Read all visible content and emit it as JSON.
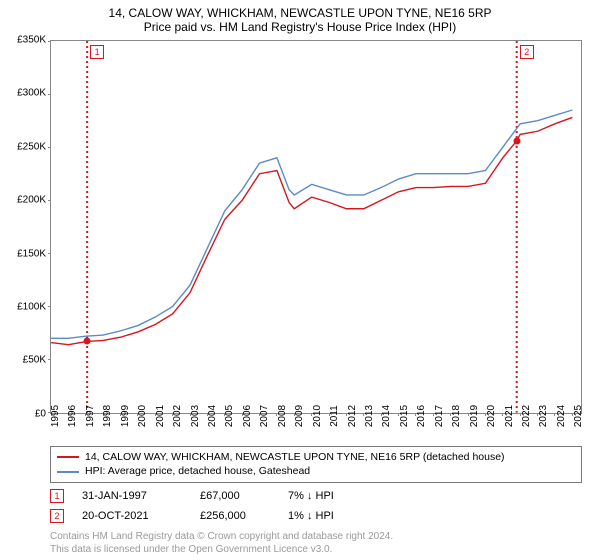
{
  "title": {
    "main": "14, CALOW WAY, WHICKHAM, NEWCASTLE UPON TYNE, NE16 5RP",
    "sub": "Price paid vs. HM Land Registry's House Price Index (HPI)"
  },
  "chart": {
    "type": "line",
    "background_color": "#ffffff",
    "border_color": "#888888",
    "ylim": [
      0,
      350000
    ],
    "ytick_step": 50000,
    "y_ticks": [
      {
        "v": 0,
        "label": "£0"
      },
      {
        "v": 50000,
        "label": "£50K"
      },
      {
        "v": 100000,
        "label": "£100K"
      },
      {
        "v": 150000,
        "label": "£150K"
      },
      {
        "v": 200000,
        "label": "£200K"
      },
      {
        "v": 250000,
        "label": "£250K"
      },
      {
        "v": 300000,
        "label": "£300K"
      },
      {
        "v": 350000,
        "label": "£350K"
      }
    ],
    "xlim": [
      1995,
      2025.5
    ],
    "x_ticks": [
      1995,
      1996,
      1997,
      1998,
      1999,
      2000,
      2001,
      2002,
      2003,
      2004,
      2005,
      2006,
      2007,
      2008,
      2009,
      2010,
      2011,
      2012,
      2013,
      2014,
      2015,
      2016,
      2017,
      2018,
      2019,
      2020,
      2021,
      2022,
      2023,
      2024,
      2025
    ],
    "axis_fontsize": 10,
    "line_width": 1.4,
    "series": [
      {
        "name": "hpi",
        "color": "#5b8bc4",
        "points": [
          [
            1995,
            70000
          ],
          [
            1996,
            70000
          ],
          [
            1997,
            72000
          ],
          [
            1998,
            73000
          ],
          [
            1999,
            77000
          ],
          [
            2000,
            82000
          ],
          [
            2001,
            90000
          ],
          [
            2002,
            100000
          ],
          [
            2003,
            120000
          ],
          [
            2004,
            155000
          ],
          [
            2005,
            190000
          ],
          [
            2006,
            210000
          ],
          [
            2007,
            235000
          ],
          [
            2008,
            240000
          ],
          [
            2008.7,
            210000
          ],
          [
            2009,
            205000
          ],
          [
            2010,
            215000
          ],
          [
            2011,
            210000
          ],
          [
            2012,
            205000
          ],
          [
            2013,
            205000
          ],
          [
            2014,
            212000
          ],
          [
            2015,
            220000
          ],
          [
            2016,
            225000
          ],
          [
            2017,
            225000
          ],
          [
            2018,
            225000
          ],
          [
            2019,
            225000
          ],
          [
            2020,
            228000
          ],
          [
            2021,
            250000
          ],
          [
            2022,
            272000
          ],
          [
            2023,
            275000
          ],
          [
            2024,
            280000
          ],
          [
            2025,
            285000
          ]
        ]
      },
      {
        "name": "price_paid",
        "color": "#d4171f",
        "points": [
          [
            1995,
            66000
          ],
          [
            1996,
            64000
          ],
          [
            1997.08,
            67000
          ],
          [
            1998,
            68000
          ],
          [
            1999,
            71000
          ],
          [
            2000,
            76000
          ],
          [
            2001,
            83000
          ],
          [
            2002,
            93000
          ],
          [
            2003,
            113000
          ],
          [
            2004,
            148000
          ],
          [
            2005,
            182000
          ],
          [
            2006,
            200000
          ],
          [
            2007,
            225000
          ],
          [
            2008,
            228000
          ],
          [
            2008.7,
            198000
          ],
          [
            2009,
            192000
          ],
          [
            2010,
            203000
          ],
          [
            2011,
            198000
          ],
          [
            2012,
            192000
          ],
          [
            2013,
            192000
          ],
          [
            2014,
            200000
          ],
          [
            2015,
            208000
          ],
          [
            2016,
            212000
          ],
          [
            2017,
            212000
          ],
          [
            2018,
            213000
          ],
          [
            2019,
            213000
          ],
          [
            2020,
            216000
          ],
          [
            2021,
            240000
          ],
          [
            2021.8,
            256000
          ],
          [
            2022,
            262000
          ],
          [
            2023,
            265000
          ],
          [
            2024,
            272000
          ],
          [
            2025,
            278000
          ]
        ]
      }
    ],
    "sale_markers": [
      {
        "idx": "1",
        "x": 1997.08,
        "y": 67000,
        "color": "#d4171f"
      },
      {
        "idx": "2",
        "x": 2021.8,
        "y": 256000,
        "color": "#d4171f"
      }
    ],
    "vline_color": "#d4171f"
  },
  "legend": {
    "items": [
      {
        "color": "#d4171f",
        "label": "14, CALOW WAY, WHICKHAM, NEWCASTLE UPON TYNE, NE16 5RP (detached house)"
      },
      {
        "color": "#5b8bc4",
        "label": "HPI: Average price, detached house, Gateshead"
      }
    ]
  },
  "sales": [
    {
      "idx": "1",
      "color": "#d4171f",
      "date": "31-JAN-1997",
      "price": "£67,000",
      "hpi": "7% ↓ HPI"
    },
    {
      "idx": "2",
      "color": "#d4171f",
      "date": "20-OCT-2021",
      "price": "£256,000",
      "hpi": "1% ↓ HPI"
    }
  ],
  "attribution": {
    "line1": "Contains HM Land Registry data © Crown copyright and database right 2024.",
    "line2": "This data is licensed under the Open Government Licence v3.0."
  }
}
